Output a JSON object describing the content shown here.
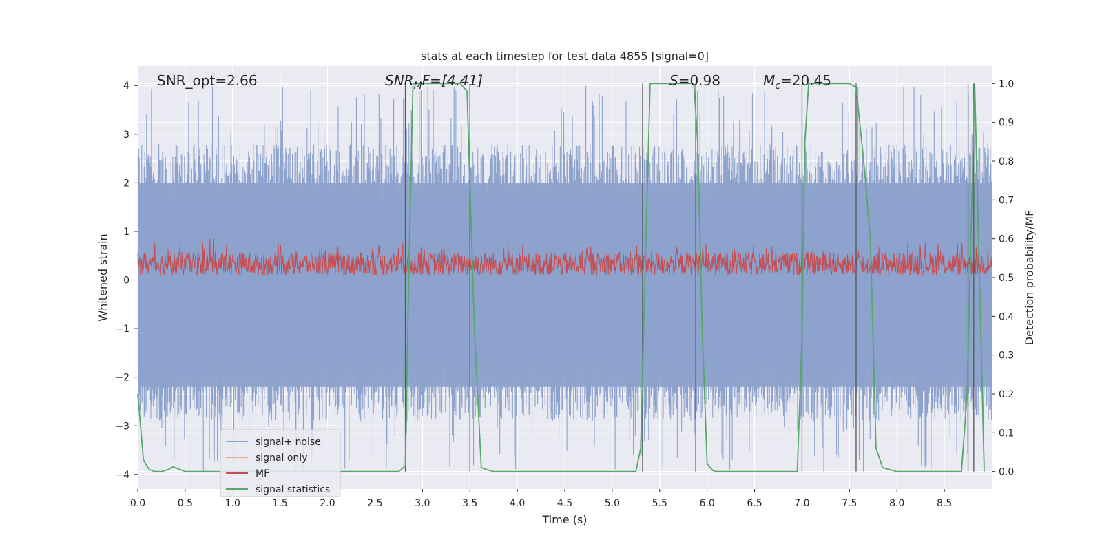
{
  "chart_data": {
    "type": "line",
    "title": "stats at each timestep for test data 4855 [signal=0]",
    "xlabel": "Time (s)",
    "ylabel_left": "Whitened strain",
    "ylabel_right": "Detection probability/MF",
    "xlim": [
      0,
      9.0
    ],
    "ylim_left": [
      -4.3,
      4.4
    ],
    "ylim_right": [
      -0.045,
      1.045
    ],
    "x_ticks": [
      "0.0",
      "0.5",
      "1.0",
      "1.5",
      "2.0",
      "2.5",
      "3.0",
      "3.5",
      "4.0",
      "4.5",
      "5.0",
      "5.5",
      "6.0",
      "6.5",
      "7.0",
      "7.5",
      "8.0",
      "8.5"
    ],
    "y_ticks_left": [
      "4",
      "3",
      "2",
      "1",
      "0",
      "−1",
      "−2",
      "−3",
      "−4"
    ],
    "y_ticks_right": [
      "1.0",
      "0.9",
      "0.8",
      "0.7",
      "0.6",
      "0.5",
      "0.4",
      "0.3",
      "0.2",
      "0.1",
      "0.0"
    ],
    "annotations": {
      "snr_opt": "SNR_opt=2.66",
      "snr_mf_base": "SNR",
      "snr_mf_sub": "M",
      "snr_mf_rest": "F=[4.41]",
      "s_base": "S",
      "s_rest": "=0.98",
      "mc_base": "M",
      "mc_sub": "c",
      "mc_rest": "=20.45"
    },
    "legend": {
      "position": "lower-left",
      "entries": [
        {
          "label": "signal+ noise",
          "color": "#8da2cc"
        },
        {
          "label": "signal only",
          "color": "#eea98c"
        },
        {
          "label": "MF",
          "color": "#c44e52"
        },
        {
          "label": "signal statistics",
          "color": "#55a868"
        }
      ]
    },
    "vertical_lines_x": [
      2.82,
      3.5,
      5.32,
      5.88,
      7.0,
      7.57,
      8.75,
      8.81
    ],
    "series": [
      {
        "name": "signal statistics",
        "axis": "right",
        "color": "#55a868",
        "x": [
          0.0,
          0.06,
          0.12,
          0.18,
          0.25,
          0.32,
          0.37,
          0.45,
          0.5,
          1.0,
          2.0,
          2.75,
          2.82,
          2.86,
          2.9,
          3.4,
          3.47,
          3.55,
          3.62,
          3.68,
          3.75,
          4.0,
          5.0,
          5.25,
          5.3,
          5.35,
          5.4,
          5.86,
          5.9,
          5.95,
          6.0,
          6.06,
          6.1,
          6.5,
          6.95,
          7.0,
          7.03,
          7.07,
          7.5,
          7.57,
          7.65,
          7.72,
          7.78,
          7.85,
          8.0,
          8.5,
          8.68,
          8.74,
          8.78,
          8.82,
          8.86,
          8.92
        ],
        "y": [
          0.2,
          0.03,
          0.005,
          0.0,
          0.0,
          0.005,
          0.012,
          0.005,
          0.0,
          0.0,
          0.0,
          0.0,
          0.015,
          0.55,
          1.0,
          1.0,
          0.98,
          0.35,
          0.01,
          0.005,
          0.0,
          0.0,
          0.0,
          0.0,
          0.06,
          0.55,
          1.0,
          1.0,
          0.85,
          0.35,
          0.02,
          0.003,
          0.0,
          0.0,
          0.0,
          0.35,
          0.85,
          1.0,
          1.0,
          0.99,
          0.8,
          0.6,
          0.06,
          0.01,
          0.0,
          0.0,
          0.0,
          0.2,
          0.6,
          1.0,
          0.6,
          0.0
        ]
      },
      {
        "name": "signal+ noise",
        "axis": "left",
        "color": "#8da2cc",
        "description": "dense whitened noise filling roughly -2.5 to 2.5 with spikes up to ±4"
      },
      {
        "name": "MF",
        "axis": "right",
        "color": "#c44e52",
        "description": "dense matched-filter output between about 0.5 and 0.6"
      }
    ]
  }
}
